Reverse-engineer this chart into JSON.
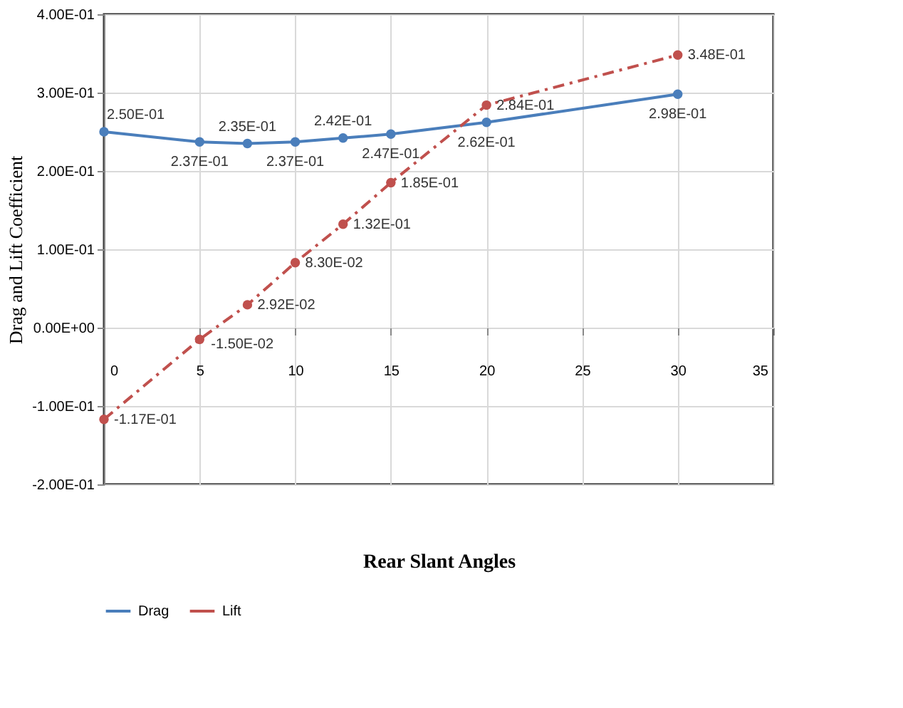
{
  "chart_data": {
    "type": "line",
    "xlabel": "Rear Slant Angles",
    "ylabel": "Drag and Lift Coefficient",
    "x": [
      0,
      5,
      7.5,
      10,
      12.5,
      15,
      20,
      30
    ],
    "series": [
      {
        "name": "Drag",
        "color": "#4a7ebb",
        "line_style": "solid",
        "values": [
          0.25,
          0.237,
          0.235,
          0.237,
          0.242,
          0.247,
          0.262,
          0.298
        ],
        "value_labels": [
          "2.50E-01",
          "2.37E-01",
          "2.35E-01",
          "2.37E-01",
          "2.42E-01",
          "2.47E-01",
          "2.62E-01",
          "2.98E-01"
        ]
      },
      {
        "name": "Lift",
        "color": "#c0504d",
        "line_style": "dashed",
        "values": [
          -0.117,
          -0.015,
          0.0292,
          0.083,
          0.132,
          0.185,
          0.284,
          0.348
        ],
        "value_labels": [
          "-1.17E-01",
          "-1.50E-02",
          "2.92E-02",
          "8.30E-02",
          "1.32E-01",
          "1.85E-01",
          "2.84E-01",
          "3.48E-01"
        ]
      }
    ],
    "xlim": [
      0,
      35
    ],
    "xticks": [
      0,
      5,
      10,
      15,
      20,
      25,
      30,
      35
    ],
    "ylim": [
      -0.2,
      0.4
    ],
    "yticks": [
      {
        "value": -0.2,
        "label": "-2.00E-01"
      },
      {
        "value": -0.1,
        "label": "-1.00E-01"
      },
      {
        "value": 0,
        "label": "0.00E+00"
      },
      {
        "value": 0.1,
        "label": "1.00E-01"
      },
      {
        "value": 0.2,
        "label": "2.00E-01"
      },
      {
        "value": 0.3,
        "label": "3.00E-01"
      },
      {
        "value": 0.4,
        "label": "4.00E-01"
      }
    ],
    "grid": true,
    "legend": "bottom",
    "marker": "circle"
  }
}
